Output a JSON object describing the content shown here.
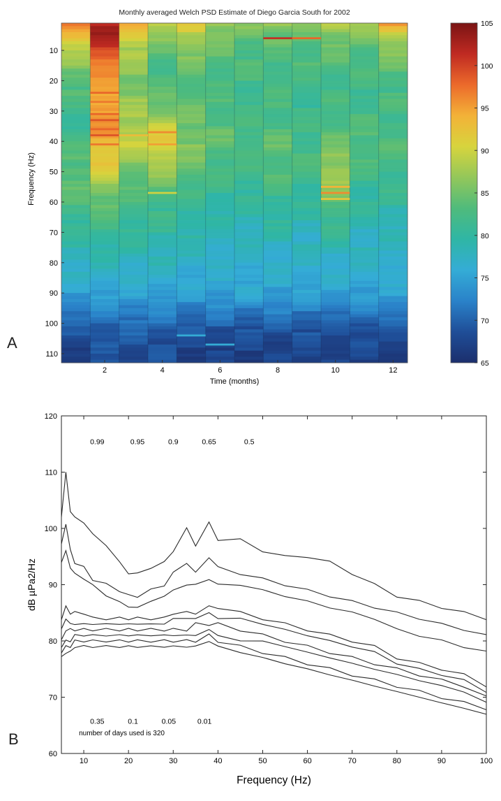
{
  "panels": {
    "a_label": "A",
    "b_label": "B"
  },
  "colorscale": [
    "#1c2f6d",
    "#1f4e98",
    "#2a82c9",
    "#34acd6",
    "#2fb6a5",
    "#4fbb7c",
    "#93c75a",
    "#d7d43d",
    "#f3b238",
    "#ec6a2b",
    "#c02a22",
    "#7a1414"
  ],
  "chart_data": [
    {
      "type": "heatmap",
      "title": "Monthly averaged Welch PSD Estimate of Diego Garcia South for 2002",
      "xlabel": "Time (months)",
      "ylabel": "Frequency (Hz)",
      "x_ticks": [
        2,
        4,
        6,
        8,
        10,
        12
      ],
      "y_ticks": [
        10,
        20,
        30,
        40,
        50,
        60,
        70,
        80,
        90,
        100,
        110
      ],
      "xlim": [
        0.5,
        12.5
      ],
      "ylim": [
        113,
        1
      ],
      "months": [
        1,
        2,
        3,
        4,
        5,
        6,
        7,
        8,
        9,
        10,
        11,
        12
      ],
      "colorbar": {
        "ticks": [
          65,
          70,
          75,
          80,
          85,
          90,
          95,
          100,
          105
        ],
        "range": [
          65,
          105
        ]
      },
      "column_profiles": {
        "freq": [
          1,
          5,
          10,
          20,
          30,
          40,
          50,
          60,
          70,
          80,
          90,
          100,
          105,
          113
        ],
        "months": [
          [
            98,
            94,
            88,
            84,
            81,
            82,
            84,
            83,
            80,
            78,
            75,
            70,
            68,
            67
          ],
          [
            103,
            102,
            100,
            94,
            96,
            94,
            90,
            84,
            81,
            78,
            75,
            71,
            69,
            68
          ],
          [
            94,
            92,
            88,
            86,
            87,
            90,
            85,
            82,
            80,
            78,
            75,
            71,
            69,
            68
          ],
          [
            90,
            86,
            84,
            82,
            86,
            92,
            87,
            82,
            80,
            78,
            75,
            71,
            69,
            68
          ],
          [
            92,
            89,
            86,
            83,
            84,
            86,
            84,
            81,
            79,
            77,
            75,
            70,
            68,
            67
          ],
          [
            88,
            86,
            84,
            82,
            83,
            84,
            82,
            80,
            78,
            77,
            75,
            70,
            68,
            67
          ],
          [
            86,
            84,
            83,
            82,
            82,
            83,
            82,
            80,
            78,
            77,
            75,
            70,
            68,
            67
          ],
          [
            88,
            85,
            83,
            82,
            82,
            84,
            83,
            81,
            79,
            77,
            75,
            70,
            68,
            67
          ],
          [
            86,
            84,
            83,
            82,
            81,
            82,
            82,
            80,
            78,
            77,
            75,
            70,
            68,
            67
          ],
          [
            90,
            86,
            84,
            82,
            82,
            84,
            88,
            84,
            80,
            77,
            75,
            70,
            68,
            67
          ],
          [
            88,
            85,
            83,
            82,
            82,
            83,
            82,
            80,
            78,
            77,
            75,
            70,
            68,
            67
          ],
          [
            96,
            90,
            86,
            83,
            82,
            83,
            82,
            80,
            78,
            77,
            75,
            70,
            68,
            67
          ]
        ]
      },
      "lines": [
        {
          "month": 2,
          "freq": 24,
          "db": 98
        },
        {
          "month": 2,
          "freq": 27,
          "db": 97
        },
        {
          "month": 2,
          "freq": 31,
          "db": 98
        },
        {
          "month": 2,
          "freq": 33,
          "db": 99
        },
        {
          "month": 2,
          "freq": 36,
          "db": 98
        },
        {
          "month": 2,
          "freq": 38,
          "db": 99
        },
        {
          "month": 2,
          "freq": 41,
          "db": 97
        },
        {
          "month": 3,
          "freq": 38,
          "db": 93
        },
        {
          "month": 4,
          "freq": 37,
          "db": 96
        },
        {
          "month": 4,
          "freq": 41,
          "db": 95
        },
        {
          "month": 4,
          "freq": 57,
          "db": 90
        },
        {
          "month": 5,
          "freq": 104,
          "db": 76
        },
        {
          "month": 6,
          "freq": 107,
          "db": 76
        },
        {
          "month": 8,
          "freq": 6,
          "db": 101
        },
        {
          "month": 9,
          "freq": 6,
          "db": 98
        },
        {
          "month": 10,
          "freq": 55,
          "db": 94
        },
        {
          "month": 10,
          "freq": 57,
          "db": 96
        },
        {
          "month": 10,
          "freq": 59,
          "db": 92
        }
      ]
    },
    {
      "type": "line",
      "xlabel": "Frequency (Hz)",
      "ylabel": "dB µPa2/Hz",
      "xlim": [
        5,
        100
      ],
      "ylim": [
        60,
        120
      ],
      "x_ticks": [
        10,
        20,
        30,
        40,
        50,
        60,
        70,
        80,
        90,
        100
      ],
      "y_ticks": [
        60,
        70,
        80,
        90,
        100,
        110,
        120
      ],
      "x": [
        5,
        6,
        7,
        8,
        10,
        12,
        15,
        18,
        20,
        22,
        25,
        28,
        30,
        33,
        35,
        38,
        40,
        45,
        50,
        55,
        60,
        65,
        70,
        75,
        80,
        85,
        90,
        95,
        100
      ],
      "series": [
        {
          "values": [
            102,
            110,
            103,
            102,
            101,
            99,
            97,
            94,
            92,
            92,
            93,
            94,
            96,
            100,
            97,
            101,
            98,
            98,
            96,
            95,
            95,
            94,
            92,
            90,
            88,
            87,
            86,
            85,
            84
          ]
        },
        {
          "values": [
            97,
            101,
            96,
            94,
            93,
            91,
            90,
            89,
            88,
            88,
            89,
            90,
            92,
            94,
            92,
            95,
            93,
            92,
            91,
            90,
            89,
            88,
            87,
            86,
            85,
            84,
            83,
            82,
            81
          ]
        },
        {
          "values": [
            94,
            96,
            93,
            92,
            91,
            90,
            88,
            87,
            86,
            86,
            87,
            88,
            89,
            90,
            90,
            91,
            90,
            90,
            89,
            88,
            87,
            86,
            85,
            84,
            82,
            81,
            80,
            79,
            78
          ]
        },
        {
          "values": [
            84,
            86,
            85,
            85,
            85,
            84,
            84,
            84,
            84,
            84,
            84,
            84,
            85,
            85,
            85,
            86,
            86,
            85,
            84,
            83,
            82,
            81,
            80,
            79,
            77,
            76,
            75,
            74,
            72
          ]
        },
        {
          "values": [
            82,
            84,
            83,
            83,
            83,
            83,
            83,
            83,
            83,
            83,
            83,
            83,
            84,
            84,
            84,
            85,
            84,
            84,
            83,
            82,
            81,
            80,
            79,
            78,
            76,
            75,
            74,
            73,
            71
          ]
        },
        {
          "values": [
            80,
            82,
            82,
            82,
            82,
            82,
            82,
            82,
            82,
            82,
            82,
            82,
            82,
            82,
            83,
            83,
            83,
            82,
            81,
            80,
            79,
            78,
            77,
            76,
            75,
            74,
            73,
            72,
            70
          ]
        },
        {
          "values": [
            79,
            80,
            80,
            81,
            81,
            81,
            81,
            81,
            81,
            81,
            81,
            81,
            81,
            81,
            81,
            82,
            81,
            80,
            80,
            79,
            78,
            77,
            76,
            75,
            74,
            73,
            72,
            71,
            69
          ]
        },
        {
          "values": [
            78,
            79,
            79,
            80,
            80,
            80,
            80,
            80,
            80,
            80,
            80,
            80,
            80,
            80,
            80,
            81,
            80,
            79,
            78,
            77,
            76,
            75,
            74,
            73,
            72,
            71,
            70,
            69,
            68
          ]
        },
        {
          "values": [
            77,
            78,
            78,
            79,
            79,
            79,
            79,
            79,
            79,
            79,
            79,
            79,
            79,
            79,
            79,
            80,
            79,
            78,
            77,
            76,
            75,
            74,
            73,
            72,
            71,
            70,
            69,
            68,
            67
          ]
        }
      ],
      "annotations": {
        "top": [
          {
            "text": "0.99",
            "x": 13,
            "y": 115
          },
          {
            "text": "0.95",
            "x": 22,
            "y": 115
          },
          {
            "text": "0.9",
            "x": 30,
            "y": 115
          },
          {
            "text": "0.65",
            "x": 38,
            "y": 115
          },
          {
            "text": "0.5",
            "x": 47,
            "y": 115
          }
        ],
        "bottom": [
          {
            "text": "0.35",
            "x": 13,
            "y": 65.3
          },
          {
            "text": "0.1",
            "x": 21,
            "y": 65.3
          },
          {
            "text": "0.05",
            "x": 29,
            "y": 65.3
          },
          {
            "text": "0.01",
            "x": 37,
            "y": 65.3
          }
        ],
        "note": {
          "text": "number of days used is 320",
          "x": 18.5,
          "y": 63.2
        }
      }
    }
  ]
}
